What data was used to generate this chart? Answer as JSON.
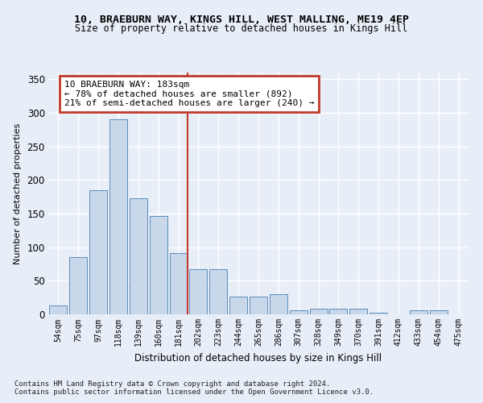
{
  "title1": "10, BRAEBURN WAY, KINGS HILL, WEST MALLING, ME19 4EP",
  "title2": "Size of property relative to detached houses in Kings Hill",
  "xlabel": "Distribution of detached houses by size in Kings Hill",
  "ylabel": "Number of detached properties",
  "categories": [
    "54sqm",
    "75sqm",
    "97sqm",
    "118sqm",
    "139sqm",
    "160sqm",
    "181sqm",
    "202sqm",
    "223sqm",
    "244sqm",
    "265sqm",
    "286sqm",
    "307sqm",
    "328sqm",
    "349sqm",
    "370sqm",
    "391sqm",
    "412sqm",
    "433sqm",
    "454sqm",
    "475sqm"
  ],
  "values": [
    13,
    85,
    185,
    290,
    173,
    146,
    91,
    67,
    67,
    27,
    27,
    30,
    6,
    8,
    9,
    9,
    3,
    0,
    6,
    6,
    0
  ],
  "bar_color": "#c8d8ea",
  "bar_edge_color": "#5b8db8",
  "property_bar_index": 6,
  "vline_color": "#c0392b",
  "annotation_text": "10 BRAEBURN WAY: 183sqm\n← 78% of detached houses are smaller (892)\n21% of semi-detached houses are larger (240) →",
  "annotation_box_color": "#ffffff",
  "annotation_box_edge": "#c0392b",
  "footnote1": "Contains HM Land Registry data © Crown copyright and database right 2024.",
  "footnote2": "Contains public sector information licensed under the Open Government Licence v3.0.",
  "bg_color": "#e8eef8",
  "grid_color": "#ffffff",
  "ylim": [
    0,
    360
  ],
  "yticks": [
    0,
    50,
    100,
    150,
    200,
    250,
    300,
    350
  ]
}
